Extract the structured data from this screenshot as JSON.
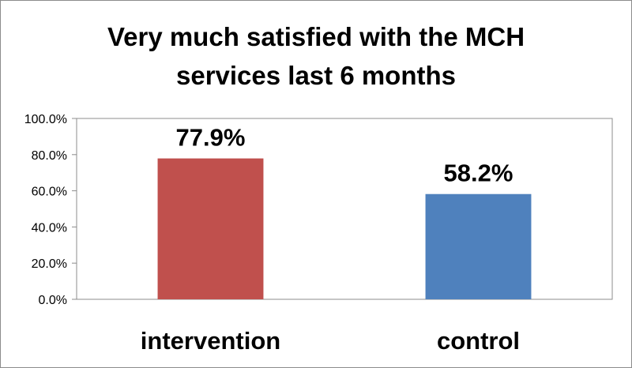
{
  "chart_data": {
    "type": "bar",
    "title": "Very much satisfied with the MCH services last 6 months",
    "title_lines": [
      "Very much satisfied with the MCH",
      "services last 6 months"
    ],
    "categories": [
      "intervention",
      "control"
    ],
    "values": [
      77.9,
      58.2
    ],
    "value_labels": [
      "77.9%",
      "58.2%"
    ],
    "colors": [
      "#c0504d",
      "#4f81bd"
    ],
    "ylim": [
      0,
      100
    ],
    "yticks": [
      0,
      20,
      40,
      60,
      80,
      100
    ],
    "ytick_labels": [
      "0.0%",
      "20.0%",
      "40.0%",
      "60.0%",
      "80.0%",
      "100.0%"
    ],
    "xlabel": "",
    "ylabel": "",
    "grid": false,
    "legend": "none"
  }
}
